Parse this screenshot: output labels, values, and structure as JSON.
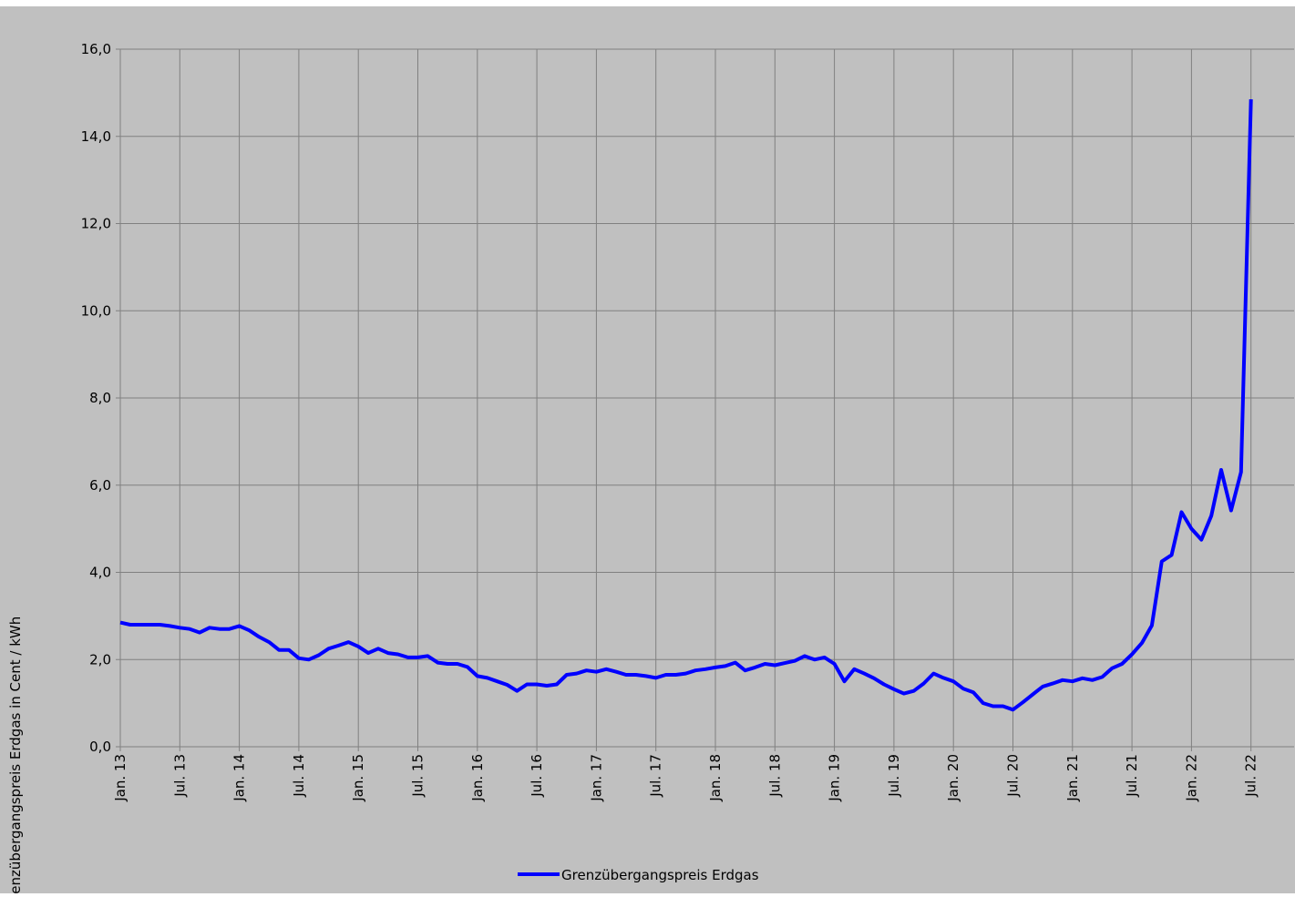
{
  "chart_data": {
    "type": "line",
    "y_label": "Grenzübergangspreis Erdgas in Cent / kWh",
    "categories": [
      "Jan. 13",
      null,
      null,
      null,
      null,
      null,
      "Jul. 13",
      null,
      null,
      null,
      null,
      null,
      "Jan. 14",
      null,
      null,
      null,
      null,
      null,
      "Jul. 14",
      null,
      null,
      null,
      null,
      null,
      "Jan. 15",
      null,
      null,
      null,
      null,
      null,
      "Jul. 15",
      null,
      null,
      null,
      null,
      null,
      "Jan. 16",
      null,
      null,
      null,
      null,
      null,
      "Jul. 16",
      null,
      null,
      null,
      null,
      null,
      "Jan. 17",
      null,
      null,
      null,
      null,
      null,
      "Jul. 17",
      null,
      null,
      null,
      null,
      null,
      "Jan. 18",
      null,
      null,
      null,
      null,
      null,
      "Jul. 18",
      null,
      null,
      null,
      null,
      null,
      "Jan. 19",
      null,
      null,
      null,
      null,
      null,
      "Jul. 19",
      null,
      null,
      null,
      null,
      null,
      "Jan. 20",
      null,
      null,
      null,
      null,
      null,
      "Jul. 20",
      null,
      null,
      null,
      null,
      null,
      "Jan. 21",
      null,
      null,
      null,
      null,
      null,
      "Jul. 21",
      null,
      null,
      null,
      null,
      null,
      "Jan. 22",
      null,
      null,
      null,
      null,
      null,
      "Jul. 22"
    ],
    "series": [
      {
        "name": "Grenzübergangspreis Erdgas",
        "color": "#0000ff",
        "values": [
          2.85,
          2.8,
          2.8,
          2.8,
          2.8,
          2.77,
          2.73,
          2.7,
          2.62,
          2.73,
          2.7,
          2.7,
          2.77,
          2.67,
          2.52,
          2.4,
          2.22,
          2.22,
          2.03,
          2.0,
          2.1,
          2.25,
          2.32,
          2.4,
          2.3,
          2.15,
          2.25,
          2.15,
          2.12,
          2.05,
          2.05,
          2.08,
          1.93,
          1.9,
          1.9,
          1.83,
          1.62,
          1.58,
          1.5,
          1.42,
          1.28,
          1.43,
          1.43,
          1.4,
          1.43,
          1.65,
          1.68,
          1.75,
          1.72,
          1.78,
          1.72,
          1.65,
          1.65,
          1.62,
          1.58,
          1.65,
          1.65,
          1.68,
          1.75,
          1.78,
          1.82,
          1.85,
          1.93,
          1.75,
          1.82,
          1.9,
          1.87,
          1.92,
          1.97,
          2.08,
          2.0,
          2.05,
          1.9,
          1.5,
          1.78,
          1.68,
          1.57,
          1.43,
          1.32,
          1.22,
          1.28,
          1.45,
          1.68,
          1.58,
          1.5,
          1.33,
          1.25,
          1.0,
          0.93,
          0.93,
          0.85,
          1.02,
          1.2,
          1.38,
          1.45,
          1.53,
          1.5,
          1.57,
          1.53,
          1.6,
          1.8,
          1.9,
          2.12,
          2.38,
          2.78,
          4.25,
          4.4,
          5.38,
          5.0,
          4.75,
          5.3,
          6.35,
          5.42,
          6.3,
          14.85
        ]
      }
    ],
    "ylim": [
      0,
      16
    ],
    "yticks": [
      {
        "value": 0,
        "label": "0,0"
      },
      {
        "value": 2,
        "label": "2,0"
      },
      {
        "value": 4,
        "label": "4,0"
      },
      {
        "value": 6,
        "label": "6,0"
      },
      {
        "value": 8,
        "label": "8,0"
      },
      {
        "value": 10,
        "label": "10,0"
      },
      {
        "value": 12,
        "label": "12,0"
      },
      {
        "value": 14,
        "label": "14,0"
      },
      {
        "value": 16,
        "label": "16,0"
      }
    ],
    "grid": true,
    "legend": "bottom"
  }
}
